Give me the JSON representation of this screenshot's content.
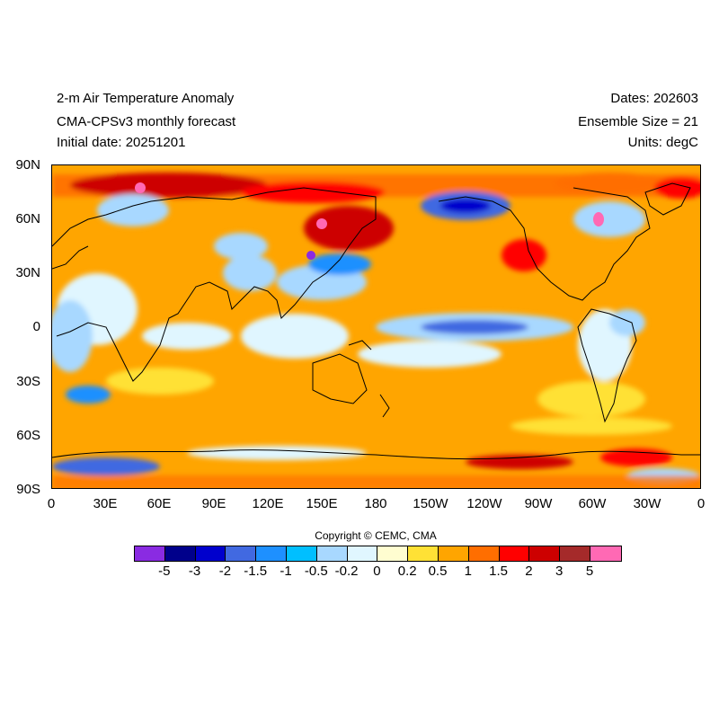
{
  "header": {
    "title_line1": "2-m Air Temperature Anomaly",
    "title_line2": "CMA-CPSv3 monthly forecast",
    "title_line3": "Initial date: 20251201",
    "dates": "Dates: 202603",
    "ensemble": "Ensemble Size = 21",
    "units": "Units: degC"
  },
  "map": {
    "projection": "equirectangular",
    "lon_range": [
      0,
      360
    ],
    "lat_range": [
      -90,
      90
    ],
    "lat_labels": [
      "90N",
      "60N",
      "30N",
      "0",
      "30S",
      "60S",
      "90S"
    ],
    "lon_labels": [
      "0",
      "30E",
      "60E",
      "90E",
      "120E",
      "150E",
      "180",
      "150W",
      "120W",
      "90W",
      "60W",
      "30W",
      "0"
    ],
    "background_color": "#ffa500",
    "coastline_color": "#000000"
  },
  "colorbar": {
    "colors": [
      "#8a2be2",
      "#00008b",
      "#0000cd",
      "#4169e1",
      "#1e90ff",
      "#00bfff",
      "#a8d8ff",
      "#e0f6ff",
      "#fffdd0",
      "#ffe135",
      "#ffa500",
      "#ff6e00",
      "#ff0000",
      "#cd0000",
      "#a52a2a",
      "#ff69b4"
    ],
    "labels": [
      "-5",
      "-3",
      "-2",
      "-1.5",
      "-1",
      "-0.5",
      "-0.2",
      "0",
      "0.2",
      "0.5",
      "1",
      "1.5",
      "2",
      "3",
      "5"
    ]
  },
  "copyright": "Copyright © CEMC, CMA"
}
